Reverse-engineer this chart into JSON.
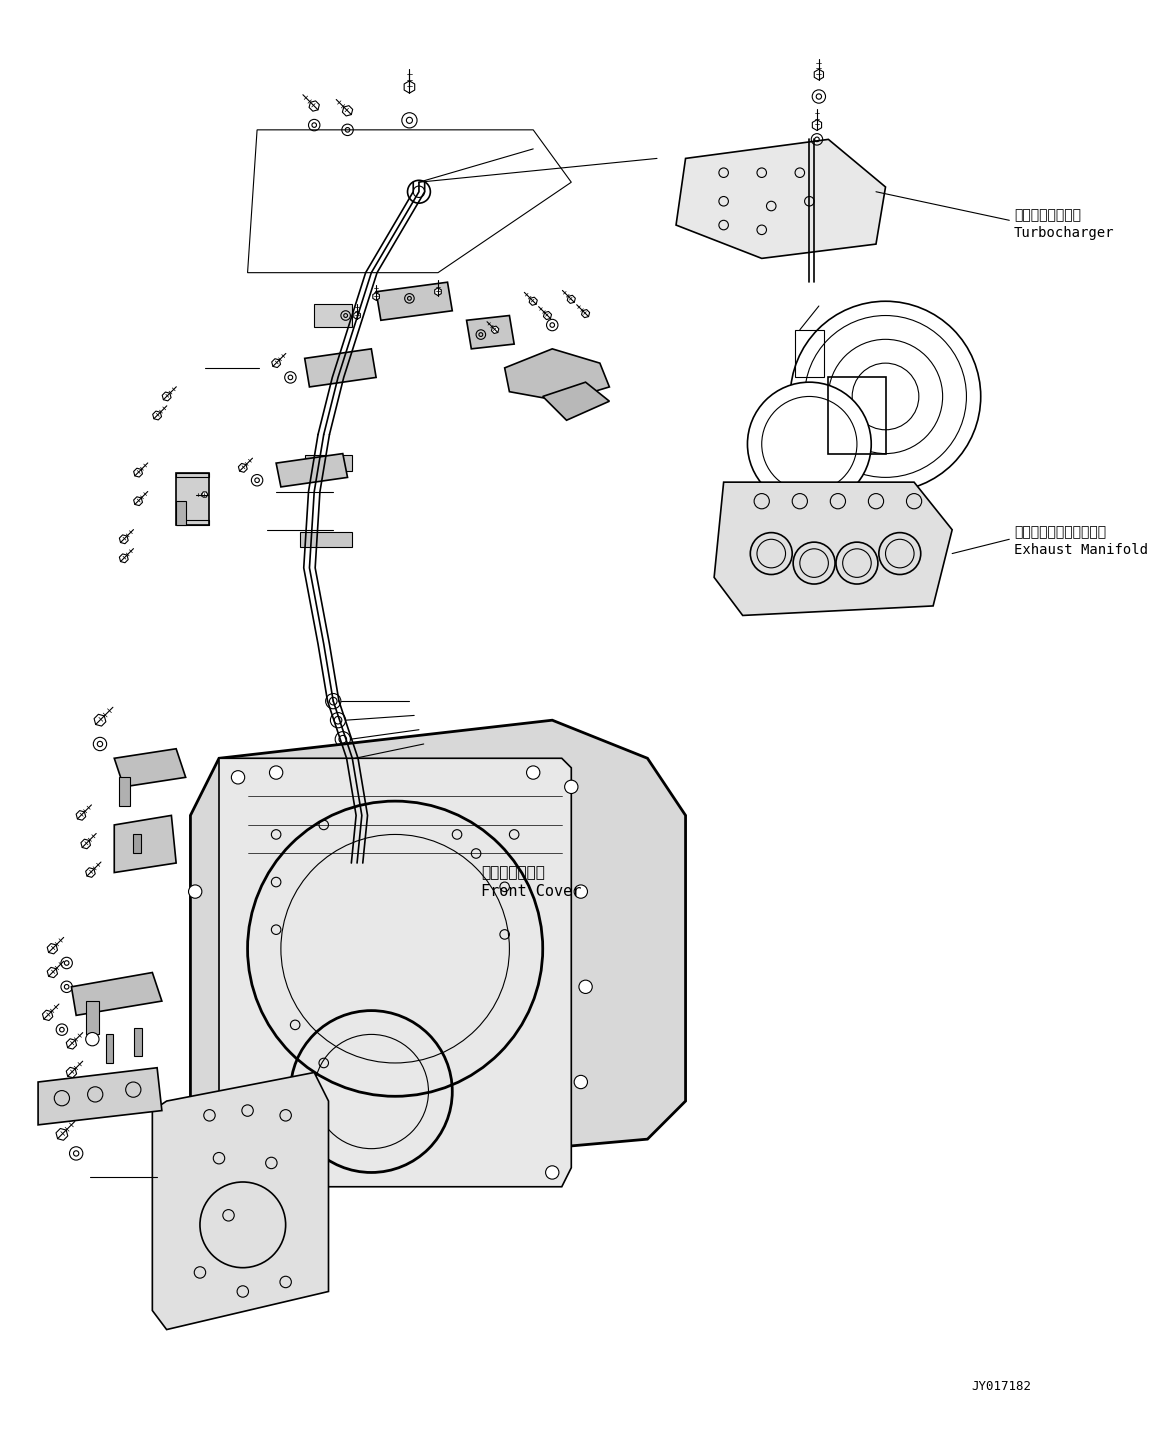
{
  "title": "",
  "background_color": "#ffffff",
  "line_color": "#000000",
  "text_color": "#000000",
  "diagram_id": "JY017182",
  "labels": {
    "turbocharger_ja": "ターボチャージャ",
    "turbocharger_en": "Turbocharger",
    "exhaust_ja": "エキゾーストマニホルド",
    "exhaust_en": "Exhaust Manifold",
    "front_cover_ja": "フロントカバー",
    "front_cover_en": "Front Cover"
  }
}
